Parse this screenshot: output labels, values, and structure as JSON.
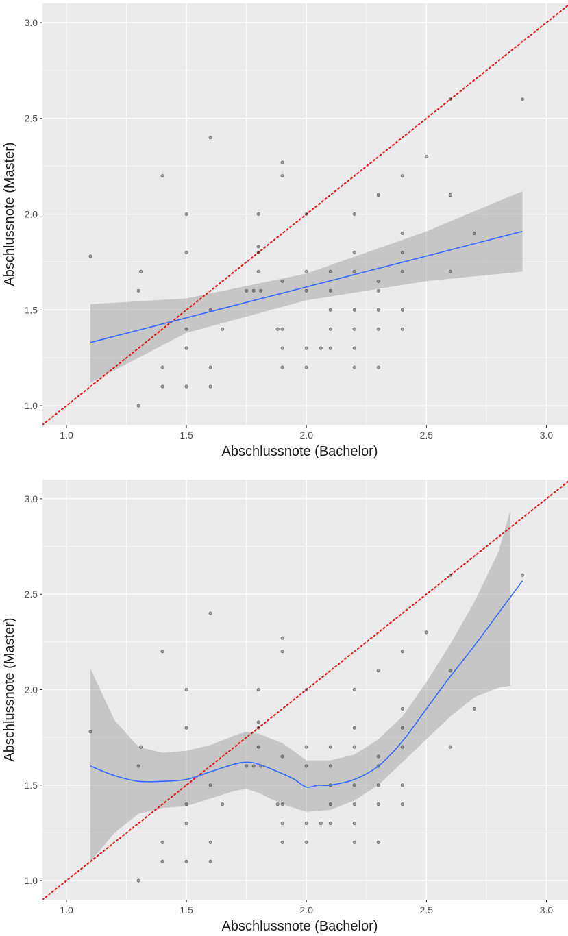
{
  "chart_data": [
    {
      "type": "scatter",
      "title": "",
      "xlabel": "Abschlussnote (Bachelor)",
      "ylabel": "Abschlussnote (Master)",
      "xlim": [
        0.9,
        3.09
      ],
      "ylim": [
        0.9,
        3.1
      ],
      "xticks": [
        "1.0",
        "1.5",
        "2.0",
        "2.5",
        "3.0"
      ],
      "yticks": [
        "1.0",
        "1.5",
        "2.0",
        "2.5",
        "3.0"
      ],
      "grid": true,
      "background": "#ebebeb",
      "points": [
        [
          1.1,
          1.78
        ],
        [
          1.3,
          1.0
        ],
        [
          1.3,
          1.6
        ],
        [
          1.31,
          1.7
        ],
        [
          1.4,
          2.2
        ],
        [
          1.4,
          1.2
        ],
        [
          1.4,
          1.1
        ],
        [
          1.5,
          2.0
        ],
        [
          1.5,
          1.8
        ],
        [
          1.5,
          1.4
        ],
        [
          1.5,
          1.3
        ],
        [
          1.5,
          1.1
        ],
        [
          1.6,
          2.4
        ],
        [
          1.6,
          1.5
        ],
        [
          1.6,
          1.2
        ],
        [
          1.6,
          1.1
        ],
        [
          1.65,
          1.4
        ],
        [
          1.75,
          1.6
        ],
        [
          1.78,
          1.6
        ],
        [
          1.8,
          2.0
        ],
        [
          1.8,
          1.83
        ],
        [
          1.8,
          1.8
        ],
        [
          1.8,
          1.7
        ],
        [
          1.81,
          1.6
        ],
        [
          1.88,
          1.4
        ],
        [
          1.9,
          2.27
        ],
        [
          1.9,
          2.2
        ],
        [
          1.9,
          1.65
        ],
        [
          1.9,
          1.4
        ],
        [
          1.9,
          1.3
        ],
        [
          1.9,
          1.2
        ],
        [
          2.0,
          2.0
        ],
        [
          2.0,
          1.7
        ],
        [
          2.0,
          1.6
        ],
        [
          2.0,
          1.3
        ],
        [
          2.0,
          1.2
        ],
        [
          2.06,
          1.3
        ],
        [
          2.1,
          1.7
        ],
        [
          2.1,
          1.6
        ],
        [
          2.1,
          1.5
        ],
        [
          2.1,
          1.4
        ],
        [
          2.1,
          1.3
        ],
        [
          2.2,
          2.0
        ],
        [
          2.2,
          1.8
        ],
        [
          2.2,
          1.7
        ],
        [
          2.2,
          1.5
        ],
        [
          2.2,
          1.4
        ],
        [
          2.2,
          1.3
        ],
        [
          2.2,
          1.2
        ],
        [
          2.3,
          2.1
        ],
        [
          2.3,
          1.65
        ],
        [
          2.3,
          1.6
        ],
        [
          2.3,
          1.5
        ],
        [
          2.3,
          1.4
        ],
        [
          2.3,
          1.2
        ],
        [
          2.4,
          2.2
        ],
        [
          2.4,
          1.9
        ],
        [
          2.4,
          1.8
        ],
        [
          2.4,
          1.7
        ],
        [
          2.4,
          1.5
        ],
        [
          2.4,
          1.4
        ],
        [
          2.5,
          2.3
        ],
        [
          2.6,
          2.6
        ],
        [
          2.6,
          2.1
        ],
        [
          2.6,
          1.7
        ],
        [
          2.7,
          1.9
        ],
        [
          2.9,
          2.6
        ]
      ],
      "reference_line": {
        "type": "identity",
        "style": "dotted",
        "color": "#e41a1c"
      },
      "fit": {
        "method": "linear",
        "color": "#3366ff",
        "x": [
          1.1,
          2.9
        ],
        "y": [
          1.33,
          1.91
        ],
        "band_x": [
          1.1,
          1.5,
          2.0,
          2.5,
          2.9
        ],
        "band_lower": [
          1.12,
          1.38,
          1.55,
          1.65,
          1.7
        ],
        "band_upper": [
          1.53,
          1.56,
          1.69,
          1.91,
          2.12
        ]
      }
    },
    {
      "type": "scatter",
      "title": "",
      "xlabel": "Abschlussnote (Bachelor)",
      "ylabel": "Abschlussnote (Master)",
      "xlim": [
        0.9,
        3.09
      ],
      "ylim": [
        0.9,
        3.1
      ],
      "xticks": [
        "1.0",
        "1.5",
        "2.0",
        "2.5",
        "3.0"
      ],
      "yticks": [
        "1.0",
        "1.5",
        "2.0",
        "2.5",
        "3.0"
      ],
      "grid": true,
      "background": "#ebebeb",
      "points": [
        [
          1.1,
          1.78
        ],
        [
          1.3,
          1.0
        ],
        [
          1.3,
          1.6
        ],
        [
          1.31,
          1.7
        ],
        [
          1.4,
          2.2
        ],
        [
          1.4,
          1.2
        ],
        [
          1.4,
          1.1
        ],
        [
          1.5,
          2.0
        ],
        [
          1.5,
          1.8
        ],
        [
          1.5,
          1.4
        ],
        [
          1.5,
          1.3
        ],
        [
          1.5,
          1.1
        ],
        [
          1.6,
          2.4
        ],
        [
          1.6,
          1.5
        ],
        [
          1.6,
          1.2
        ],
        [
          1.6,
          1.1
        ],
        [
          1.65,
          1.4
        ],
        [
          1.75,
          1.6
        ],
        [
          1.78,
          1.6
        ],
        [
          1.8,
          2.0
        ],
        [
          1.8,
          1.83
        ],
        [
          1.8,
          1.8
        ],
        [
          1.8,
          1.7
        ],
        [
          1.81,
          1.6
        ],
        [
          1.88,
          1.4
        ],
        [
          1.9,
          2.27
        ],
        [
          1.9,
          2.2
        ],
        [
          1.9,
          1.65
        ],
        [
          1.9,
          1.4
        ],
        [
          1.9,
          1.3
        ],
        [
          1.9,
          1.2
        ],
        [
          2.0,
          2.0
        ],
        [
          2.0,
          1.7
        ],
        [
          2.0,
          1.6
        ],
        [
          2.0,
          1.3
        ],
        [
          2.0,
          1.2
        ],
        [
          2.06,
          1.3
        ],
        [
          2.1,
          1.7
        ],
        [
          2.1,
          1.6
        ],
        [
          2.1,
          1.5
        ],
        [
          2.1,
          1.4
        ],
        [
          2.1,
          1.3
        ],
        [
          2.2,
          2.0
        ],
        [
          2.2,
          1.8
        ],
        [
          2.2,
          1.7
        ],
        [
          2.2,
          1.5
        ],
        [
          2.2,
          1.4
        ],
        [
          2.2,
          1.3
        ],
        [
          2.2,
          1.2
        ],
        [
          2.3,
          2.1
        ],
        [
          2.3,
          1.65
        ],
        [
          2.3,
          1.6
        ],
        [
          2.3,
          1.5
        ],
        [
          2.3,
          1.4
        ],
        [
          2.3,
          1.2
        ],
        [
          2.4,
          2.2
        ],
        [
          2.4,
          1.9
        ],
        [
          2.4,
          1.8
        ],
        [
          2.4,
          1.7
        ],
        [
          2.4,
          1.5
        ],
        [
          2.4,
          1.4
        ],
        [
          2.5,
          2.3
        ],
        [
          2.6,
          2.6
        ],
        [
          2.6,
          2.1
        ],
        [
          2.6,
          1.7
        ],
        [
          2.7,
          1.9
        ],
        [
          2.9,
          2.6
        ]
      ],
      "reference_line": {
        "type": "identity",
        "style": "dotted",
        "color": "#e41a1c"
      },
      "fit": {
        "method": "loess",
        "color": "#3366ff",
        "x": [
          1.1,
          1.2,
          1.3,
          1.4,
          1.5,
          1.6,
          1.7,
          1.75,
          1.8,
          1.9,
          1.95,
          2.0,
          2.05,
          2.1,
          2.2,
          2.3,
          2.4,
          2.5,
          2.6,
          2.7,
          2.8,
          2.9
        ],
        "y": [
          1.6,
          1.55,
          1.52,
          1.52,
          1.53,
          1.57,
          1.61,
          1.62,
          1.61,
          1.56,
          1.53,
          1.49,
          1.5,
          1.5,
          1.53,
          1.6,
          1.73,
          1.9,
          2.07,
          2.23,
          2.4,
          2.57
        ],
        "band_x": [
          1.1,
          1.2,
          1.3,
          1.4,
          1.5,
          1.6,
          1.7,
          1.75,
          1.8,
          1.9,
          2.0,
          2.1,
          2.2,
          2.3,
          2.4,
          2.5,
          2.6,
          2.7,
          2.8,
          2.85
        ],
        "band_lower": [
          1.1,
          1.25,
          1.35,
          1.38,
          1.39,
          1.43,
          1.47,
          1.48,
          1.46,
          1.4,
          1.36,
          1.37,
          1.42,
          1.5,
          1.62,
          1.74,
          1.86,
          1.96,
          2.01,
          2.02
        ],
        "band_upper": [
          2.11,
          1.84,
          1.7,
          1.67,
          1.68,
          1.71,
          1.76,
          1.78,
          1.77,
          1.72,
          1.63,
          1.63,
          1.66,
          1.74,
          1.86,
          2.04,
          2.24,
          2.46,
          2.72,
          2.94
        ]
      }
    }
  ]
}
